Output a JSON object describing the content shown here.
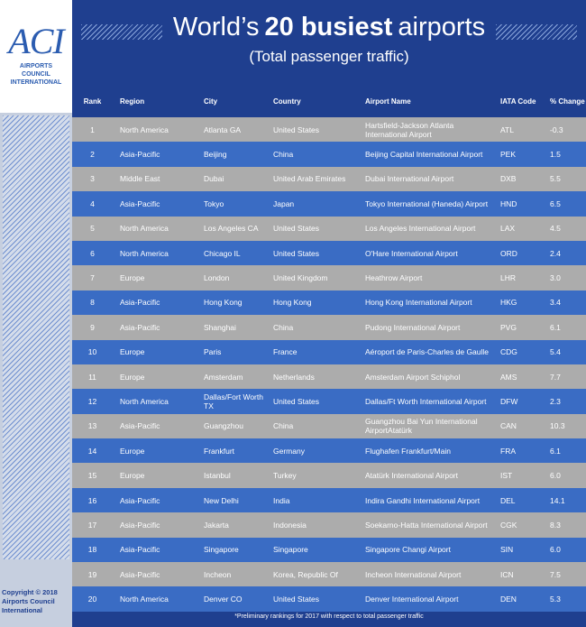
{
  "logo": {
    "mark": "ACI",
    "text": "AIRPORTS COUNCIL INTERNATIONAL"
  },
  "header": {
    "title_start": "World’s",
    "title_bold": "20 busiest",
    "title_end": "airports",
    "subtitle": "(Total passenger traffic)"
  },
  "table": {
    "columns": [
      "Rank",
      "Region",
      "City",
      "Country",
      "Airport Name",
      "IATA Code",
      "% Change"
    ],
    "rows": [
      [
        "1",
        "North America",
        "Atlanta GA",
        "United States",
        "Hartsfield-Jackson Atlanta International Airport",
        "ATL",
        "-0.3"
      ],
      [
        "2",
        "Asia-Pacific",
        "Beijing",
        "China",
        "Beijing Capital International Airport",
        "PEK",
        "1.5"
      ],
      [
        "3",
        "Middle East",
        "Dubai",
        "United Arab Emirates",
        "Dubai International Airport",
        "DXB",
        "5.5"
      ],
      [
        "4",
        "Asia-Pacific",
        "Tokyo",
        "Japan",
        "Tokyo International (Haneda) Airport",
        "HND",
        "6.5"
      ],
      [
        "5",
        "North America",
        "Los Angeles CA",
        "United States",
        "Los Angeles International Airport",
        "LAX",
        "4.5"
      ],
      [
        "6",
        "North America",
        "Chicago IL",
        "United States",
        "O'Hare International Airport",
        "ORD",
        "2.4"
      ],
      [
        "7",
        "Europe",
        "London",
        "United Kingdom",
        "Heathrow Airport",
        "LHR",
        "3.0"
      ],
      [
        "8",
        "Asia-Pacific",
        "Hong Kong",
        "Hong Kong",
        "Hong Kong International Airport",
        "HKG",
        "3.4"
      ],
      [
        "9",
        "Asia-Pacific",
        "Shanghai",
        "China",
        "Pudong International Airport",
        "PVG",
        "6.1"
      ],
      [
        "10",
        "Europe",
        "Paris",
        "France",
        "Aéroport de Paris-Charles de Gaulle",
        "CDG",
        "5.4"
      ],
      [
        "11",
        "Europe",
        "Amsterdam",
        "Netherlands",
        "Amsterdam Airport Schiphol",
        "AMS",
        "7.7"
      ],
      [
        "12",
        "North America",
        "Dallas/Fort Worth TX",
        "United States",
        "Dallas/Ft Worth International Airport",
        "DFW",
        "2.3"
      ],
      [
        "13",
        "Asia-Pacific",
        "Guangzhou",
        "China",
        "Guangzhou Bai Yun International AirportAtatürk",
        "CAN",
        "10.3"
      ],
      [
        "14",
        "Europe",
        "Frankfurt",
        "Germany",
        "Flughafen Frankfurt/Main",
        "FRA",
        "6.1"
      ],
      [
        "15",
        "Europe",
        "Istanbul",
        "Turkey",
        "Atatürk International Airport",
        "IST",
        "6.0"
      ],
      [
        "16",
        "Asia-Pacific",
        "New Delhi",
        "India",
        "Indira Gandhi International Airport",
        "DEL",
        "14.1"
      ],
      [
        "17",
        "Asia-Pacific",
        "Jakarta",
        "Indonesia",
        "Soekarno-Hatta International Airport",
        "CGK",
        "8.3"
      ],
      [
        "18",
        "Asia-Pacific",
        "Singapore",
        "Singapore",
        "Singapore Changi Airport",
        "SIN",
        "6.0"
      ],
      [
        "19",
        "Asia-Pacific",
        "Incheon",
        "Korea, Republic Of",
        "Incheon International Airport",
        "ICN",
        "7.5"
      ],
      [
        "20",
        "North America",
        "Denver CO",
        "United States",
        "Denver International Airport",
        "DEN",
        "5.3"
      ]
    ]
  },
  "footnote": "*Preliminary rankings for 2017 with respect to total passenger traffic",
  "copyright": "Copyright © 2018 Airports Council International"
}
